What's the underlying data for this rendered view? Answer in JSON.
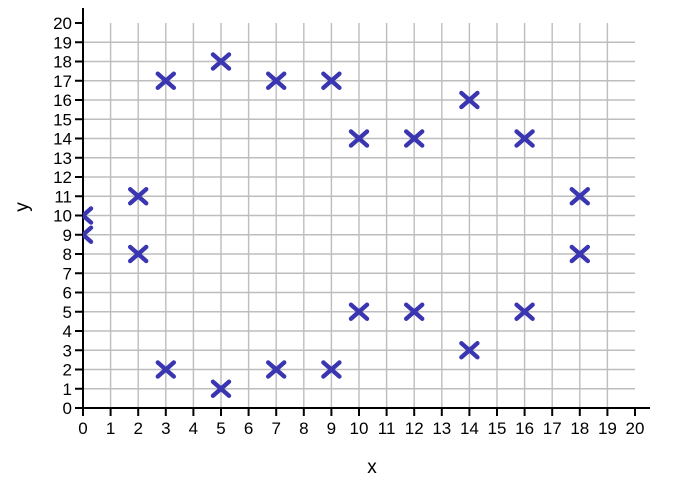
{
  "chart_data": {
    "type": "scatter",
    "title": "",
    "xlabel": "x",
    "ylabel": "y",
    "xlim": [
      0,
      20
    ],
    "ylim": [
      0,
      20
    ],
    "x_ticks": [
      0,
      1,
      2,
      3,
      4,
      5,
      6,
      7,
      8,
      9,
      10,
      11,
      12,
      13,
      14,
      15,
      16,
      17,
      18,
      19,
      20
    ],
    "y_ticks": [
      0,
      1,
      2,
      3,
      4,
      5,
      6,
      7,
      8,
      9,
      10,
      11,
      12,
      13,
      14,
      15,
      16,
      17,
      18,
      19,
      20
    ],
    "grid": true,
    "legend": "none",
    "marker": "x",
    "marker_color": "#3A35B0",
    "grid_color": "#BDBDBD",
    "axis_color": "#000000",
    "points": [
      [
        0,
        9
      ],
      [
        0,
        10
      ],
      [
        2,
        8
      ],
      [
        2,
        11
      ],
      [
        3,
        2
      ],
      [
        3,
        17
      ],
      [
        5,
        1
      ],
      [
        5,
        18
      ],
      [
        7,
        2
      ],
      [
        7,
        17
      ],
      [
        9,
        2
      ],
      [
        9,
        17
      ],
      [
        10,
        5
      ],
      [
        10,
        14
      ],
      [
        12,
        5
      ],
      [
        12,
        14
      ],
      [
        14,
        3
      ],
      [
        14,
        16
      ],
      [
        16,
        5
      ],
      [
        16,
        14
      ],
      [
        18,
        8
      ],
      [
        18,
        11
      ]
    ]
  }
}
